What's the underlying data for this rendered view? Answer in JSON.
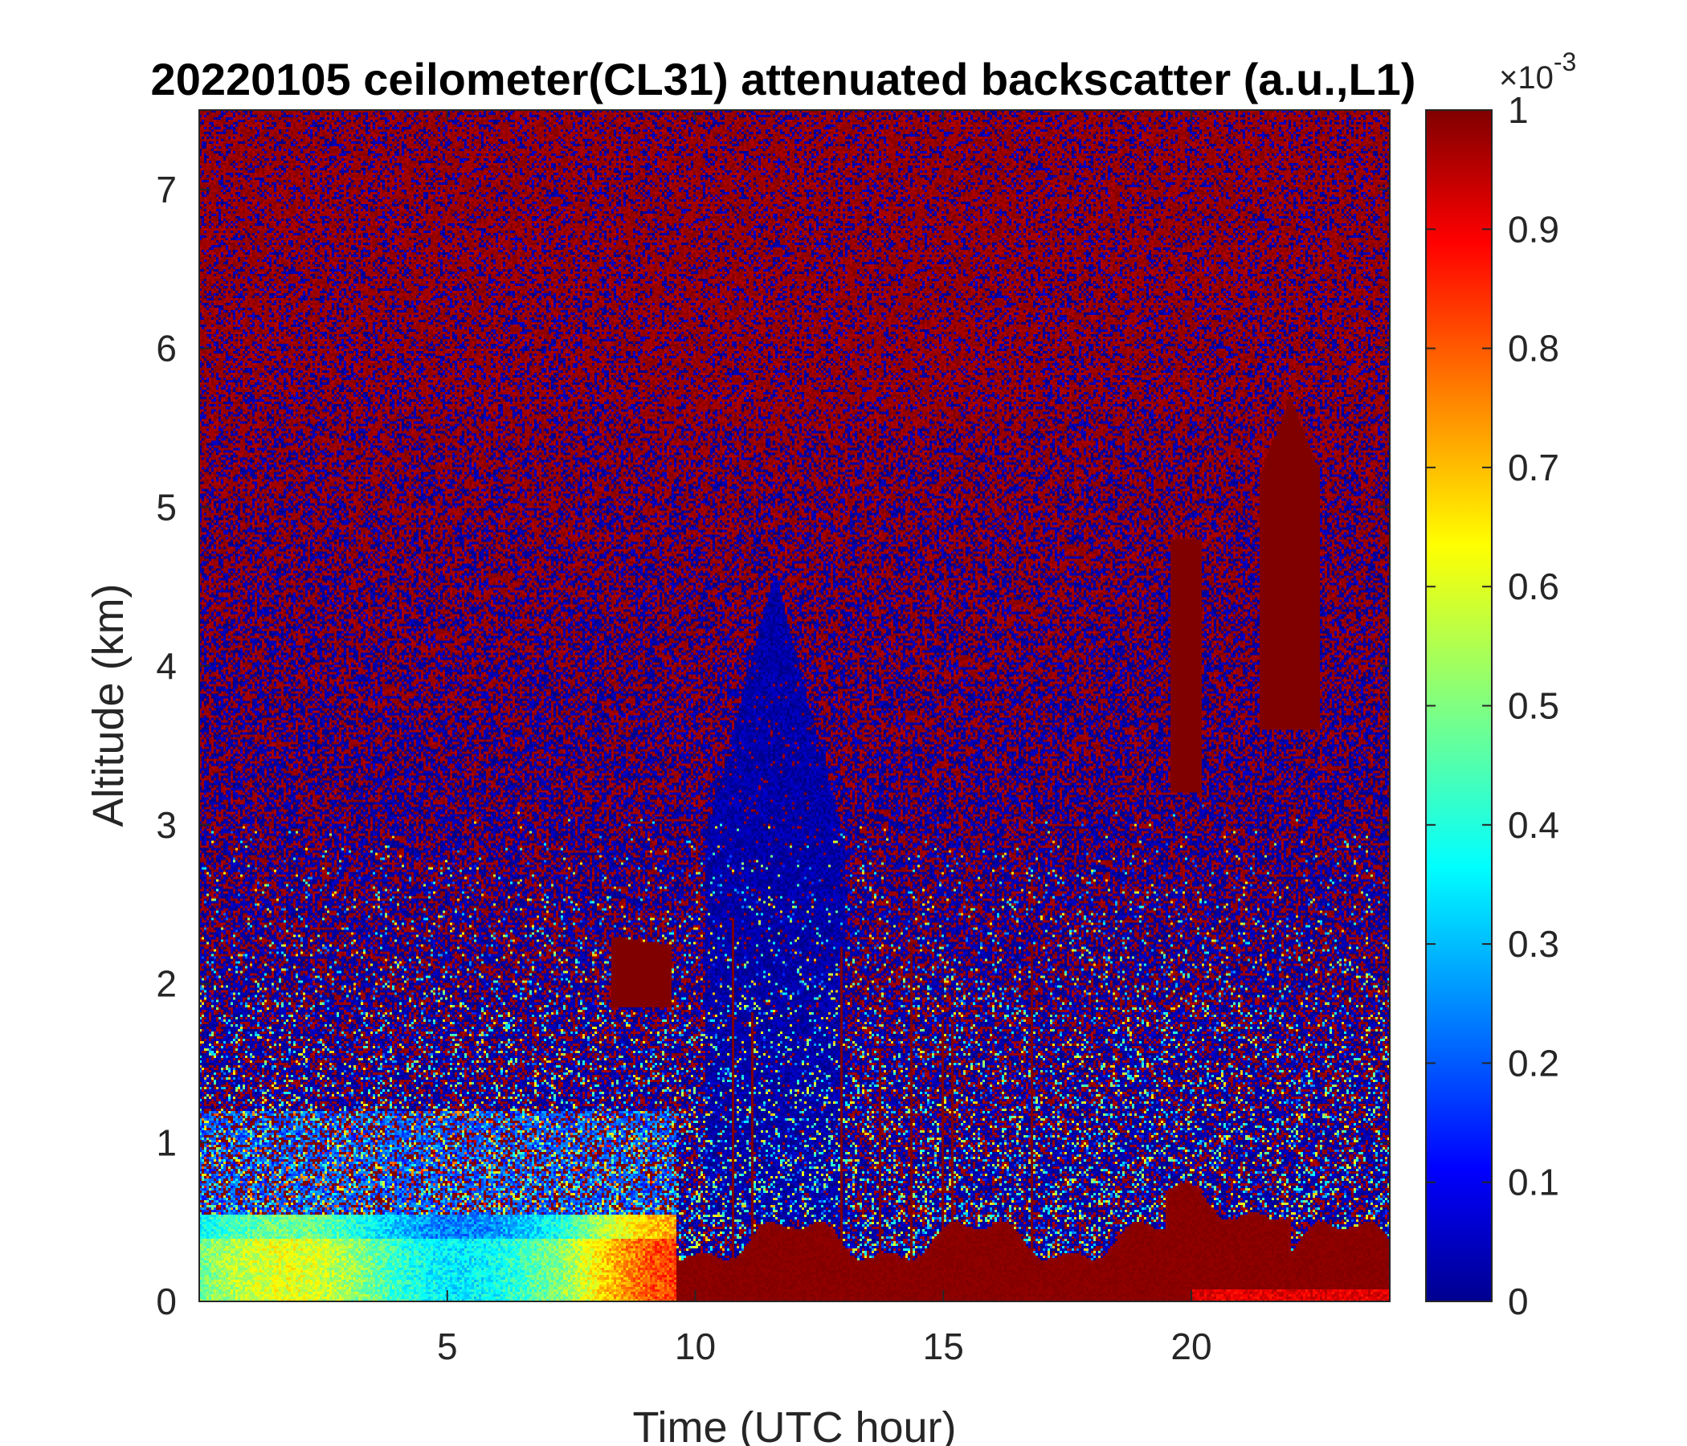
{
  "chart_data": {
    "type": "heatmap",
    "title": "20220105 ceilometer(CL31) attenuated backscatter (a.u.,L1)",
    "xlabel": "Time (UTC hour)",
    "ylabel": "Altitude (km)",
    "xlim": [
      0,
      24
    ],
    "ylim": [
      0,
      7.5
    ],
    "x_ticks": [
      5,
      10,
      15,
      20
    ],
    "x_tick_labels": [
      "5",
      "10",
      "15",
      "20"
    ],
    "y_ticks": [
      0,
      1,
      2,
      3,
      4,
      5,
      6,
      7
    ],
    "y_tick_labels": [
      "0",
      "1",
      "2",
      "3",
      "4",
      "5",
      "6",
      "7"
    ],
    "colorbar": {
      "colormap": "jet",
      "range": [
        0,
        1
      ],
      "ticks": [
        0,
        0.1,
        0.2,
        0.3,
        0.4,
        0.5,
        0.6,
        0.7,
        0.8,
        0.9,
        1
      ],
      "tick_labels": [
        "0",
        "0.1",
        "0.2",
        "0.3",
        "0.4",
        "0.5",
        "0.6",
        "0.7",
        "0.8",
        "0.9",
        "1"
      ],
      "multiplier": "×10",
      "multiplier_exponent": "-3"
    },
    "grid": false,
    "colors": {
      "low": "#00008F",
      "high": "#800000",
      "mid": "#80FF80"
    }
  }
}
